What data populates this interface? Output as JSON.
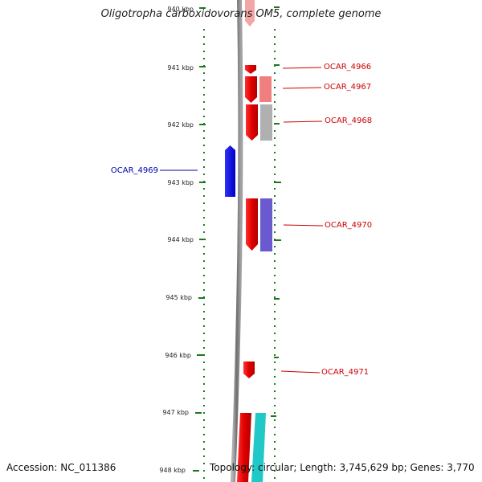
{
  "header": {
    "title": "Oligotropha carboxidovorans OM5, complete genome"
  },
  "footer": {
    "accession": "Accession: NC_011386",
    "summary": "Topology: circular; Length: 3,745,629 bp; Genes: 3,770"
  },
  "ruler": {
    "tick_labels": [
      "940 kbp",
      "941 kbp",
      "942 kbp",
      "943 kbp",
      "944 kbp",
      "945 kbp",
      "946 kbp",
      "947 kbp",
      "948 kbp"
    ]
  },
  "genes": [
    {
      "label": "OCAR_4966",
      "strand": "reverse",
      "color": "#e00000"
    },
    {
      "label": "OCAR_4967",
      "strand": "reverse",
      "color": "#e00000"
    },
    {
      "label": "OCAR_4968",
      "strand": "reverse",
      "color": "#e00000"
    },
    {
      "label": "OCAR_4969",
      "strand": "forward",
      "color": "#0000e0"
    },
    {
      "label": "OCAR_4970",
      "strand": "reverse",
      "color": "#e00000"
    },
    {
      "label": "OCAR_4971",
      "strand": "reverse",
      "color": "#e00000"
    }
  ],
  "colors": {
    "reverse_cds": "#e00000",
    "forward_cds": "#0000e0",
    "label_red": "#cc0000",
    "label_blue": "#0000aa",
    "tick_green": "#1a7a1a",
    "backbone": "#888888",
    "salmon_feature": "#f08080",
    "gray_feature": "#b0b0b0",
    "purple_feature": "#6a5acd",
    "cyan_feature": "#20c8c8"
  }
}
